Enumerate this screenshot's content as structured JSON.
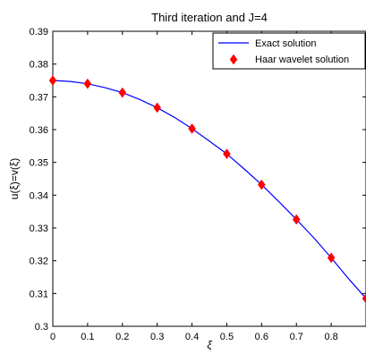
{
  "chart_data": {
    "type": "line",
    "title": "Third iteration and J=4",
    "xlabel": "ξ",
    "ylabel": "u(ξ)=v(ξ)",
    "xlim": [
      0,
      0.9
    ],
    "ylim": [
      0.3,
      0.39
    ],
    "xticks": [
      0,
      0.1,
      0.2,
      0.3,
      0.4,
      0.5,
      0.6,
      0.7,
      0.8
    ],
    "xtick_labels": [
      "0",
      "0.1",
      "0.2",
      "0.3",
      "0.4",
      "0.5",
      "0.6",
      "0.7",
      "0.8"
    ],
    "yticks": [
      0.3,
      0.31,
      0.32,
      0.33,
      0.34,
      0.35,
      0.36,
      0.37,
      0.38,
      0.39
    ],
    "ytick_labels": [
      "0.3",
      "0.31",
      "0.32",
      "0.33",
      "0.34",
      "0.35",
      "0.36",
      "0.37",
      "0.38",
      "0.39"
    ],
    "grid": false,
    "legend_position": "top-right",
    "series": [
      {
        "name": "Exact solution",
        "style": "line",
        "color": "#0000ff",
        "x": [
          0,
          0.05,
          0.1,
          0.15,
          0.2,
          0.25,
          0.3,
          0.35,
          0.4,
          0.45,
          0.5,
          0.55,
          0.6,
          0.65,
          0.7,
          0.75,
          0.8,
          0.85,
          0.9
        ],
        "y": [
          0.375,
          0.3747,
          0.374,
          0.3728,
          0.3713,
          0.3692,
          0.3667,
          0.3637,
          0.3603,
          0.3565,
          0.3526,
          0.348,
          0.3432,
          0.338,
          0.3326,
          0.327,
          0.3209,
          0.3145,
          0.3085
        ]
      },
      {
        "name": "Haar wavelet solution",
        "style": "marker-diamond",
        "color": "#ff0000",
        "x": [
          0,
          0.1,
          0.2,
          0.3,
          0.4,
          0.5,
          0.6,
          0.7,
          0.8,
          0.9
        ],
        "y": [
          0.375,
          0.374,
          0.3713,
          0.3667,
          0.3603,
          0.3526,
          0.3432,
          0.3326,
          0.3209,
          0.3085
        ]
      }
    ]
  }
}
